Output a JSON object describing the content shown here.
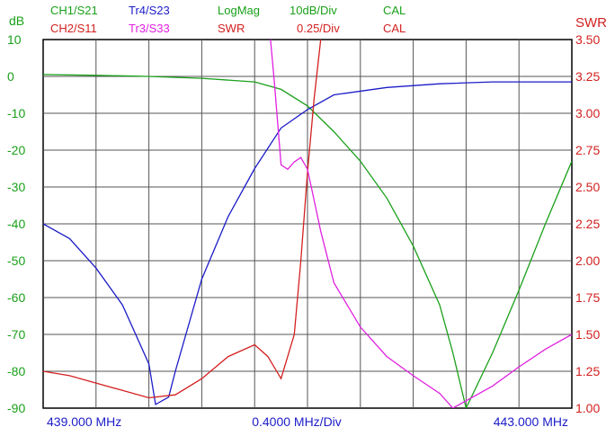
{
  "header": {
    "row1": [
      {
        "text": "CH1/S21",
        "color": "#1aa01a"
      },
      {
        "text": "Tr4/S23",
        "color": "#1c1cc8"
      },
      {
        "text": "LogMag",
        "color": "#1aa01a"
      },
      {
        "text": "10dB/Div",
        "color": "#1aa01a"
      },
      {
        "text": "CAL",
        "color": "#1aa01a"
      }
    ],
    "row2": [
      {
        "text": "CH2/S11",
        "color": "#d32020"
      },
      {
        "text": "Tr3/S33",
        "color": "#e020e0"
      },
      {
        "text": "SWR",
        "color": "#d32020"
      },
      {
        "text": "0.25/Div",
        "color": "#d32020"
      },
      {
        "text": "CAL",
        "color": "#d32020"
      }
    ]
  },
  "chart_data": {
    "type": "line",
    "left_axis": {
      "label": "dB",
      "range": [
        -90,
        10
      ],
      "ticks": [
        "10",
        "0",
        "-10",
        "-20",
        "-30",
        "-40",
        "-50",
        "-60",
        "-70",
        "-80",
        "-90"
      ],
      "color": "#1aa01a"
    },
    "right_axis": {
      "label": "SWR",
      "range": [
        1.0,
        3.5
      ],
      "ticks": [
        "3.50",
        "3.25",
        "3.00",
        "2.75",
        "2.50",
        "2.25",
        "2.00",
        "1.75",
        "1.50",
        "1.25",
        "1.00"
      ],
      "color": "#d32020"
    },
    "x_axis": {
      "range_mhz": [
        439.0,
        443.0
      ],
      "labels": [
        "439.000 MHz",
        "0.4000 MHz/Div",
        "443.000 MHz"
      ]
    },
    "grid": true,
    "series": [
      {
        "name": "CH1/S21",
        "axis": "left",
        "color": "#1aa01a",
        "x": [
          439.0,
          439.4,
          439.8,
          440.2,
          440.6,
          440.8,
          441.0,
          441.2,
          441.4,
          441.6,
          441.8,
          442.0,
          442.1,
          442.2,
          442.4,
          442.6,
          442.8,
          443.0
        ],
        "y": [
          0.5,
          0.3,
          0,
          -0.5,
          -1.5,
          -3.5,
          -8,
          -15,
          -23,
          -33,
          -46,
          -62,
          -75,
          -90,
          -75,
          -58,
          -40,
          -23
        ]
      },
      {
        "name": "Tr4/S23",
        "axis": "left",
        "color": "#1c1cc8",
        "x": [
          439.0,
          439.2,
          439.4,
          439.6,
          439.8,
          439.85,
          439.95,
          440.0,
          440.2,
          440.4,
          440.6,
          440.8,
          441.0,
          441.2,
          441.6,
          442.0,
          442.4,
          443.0
        ],
        "y": [
          -40,
          -44,
          -52,
          -62,
          -78,
          -89,
          -87,
          -80,
          -55,
          -38,
          -25,
          -14,
          -9,
          -5,
          -3,
          -2,
          -1.5,
          -1.5
        ]
      },
      {
        "name": "CH2/S11",
        "axis": "right",
        "color": "#d32020",
        "x": [
          439.0,
          439.2,
          439.4,
          439.6,
          439.8,
          440.0,
          440.2,
          440.4,
          440.6,
          440.7,
          440.8,
          440.9,
          440.95,
          441.0,
          441.05,
          441.1,
          441.15
        ],
        "y": [
          1.25,
          1.22,
          1.17,
          1.12,
          1.07,
          1.09,
          1.2,
          1.35,
          1.43,
          1.35,
          1.2,
          1.5,
          2.0,
          2.6,
          3.1,
          3.5,
          3.8
        ]
      },
      {
        "name": "Tr3/S33",
        "axis": "right",
        "color": "#e020e0",
        "x": [
          440.7,
          440.75,
          440.8,
          440.85,
          440.9,
          440.95,
          441.0,
          441.1,
          441.2,
          441.4,
          441.6,
          441.8,
          442.0,
          442.1,
          442.2,
          442.4,
          442.6,
          442.8,
          443.0
        ],
        "y": [
          3.7,
          3.2,
          2.65,
          2.62,
          2.67,
          2.7,
          2.62,
          2.2,
          1.85,
          1.55,
          1.35,
          1.22,
          1.1,
          1.0,
          1.05,
          1.15,
          1.28,
          1.4,
          1.5
        ]
      }
    ]
  }
}
